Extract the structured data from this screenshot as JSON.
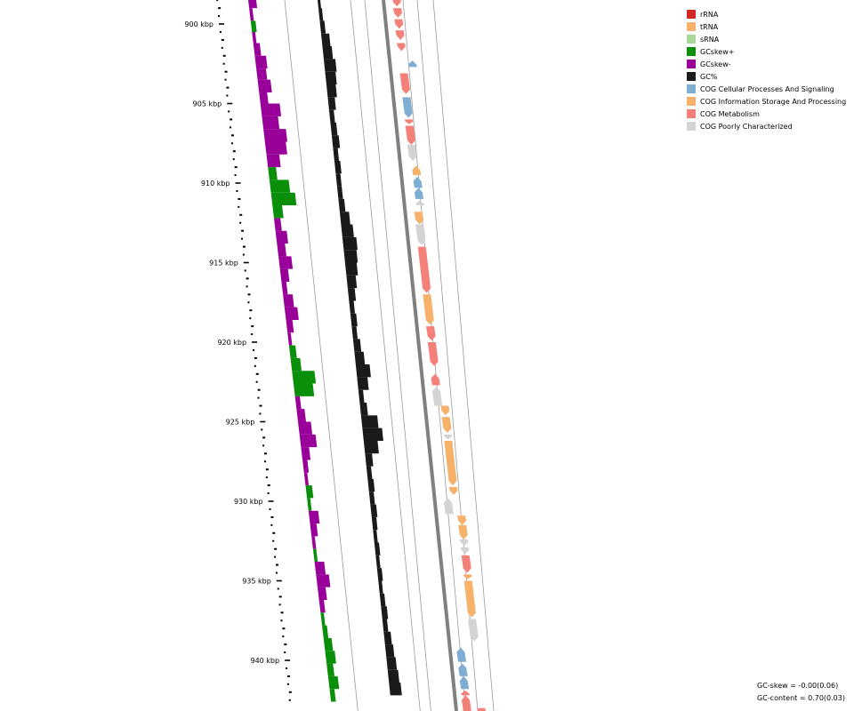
{
  "chart_data": {
    "type": "circular-genome-map-zoomed",
    "range_kbp": [
      898,
      942
    ],
    "tick_labels": [
      "900 kbp",
      "905 kbp",
      "910 kbp",
      "915 kbp",
      "920 kbp",
      "925 kbp",
      "930 kbp",
      "935 kbp",
      "940 kbp"
    ],
    "tracks": [
      "GC skew",
      "GC content",
      "COG features (reverse strand)",
      "backbone",
      "COG features (forward strand)"
    ],
    "gc_skew_profile_kbp": [
      [
        898.2,
        -0.05
      ],
      [
        899.0,
        -0.02
      ],
      [
        899.8,
        0.03
      ],
      [
        900.5,
        -0.02
      ],
      [
        901.2,
        -0.04
      ],
      [
        902.0,
        -0.07
      ],
      [
        902.8,
        -0.06
      ],
      [
        903.5,
        -0.08
      ],
      [
        904.3,
        -0.05
      ],
      [
        905.0,
        -0.12
      ],
      [
        905.8,
        -0.1
      ],
      [
        906.6,
        -0.14
      ],
      [
        907.4,
        -0.13
      ],
      [
        908.2,
        -0.08
      ],
      [
        909.0,
        0.05
      ],
      [
        909.8,
        0.12
      ],
      [
        910.6,
        0.15
      ],
      [
        911.4,
        0.06
      ],
      [
        912.2,
        -0.04
      ],
      [
        913.0,
        -0.07
      ],
      [
        913.8,
        -0.05
      ],
      [
        914.6,
        -0.08
      ],
      [
        915.4,
        -0.05
      ],
      [
        916.2,
        -0.03
      ],
      [
        917.0,
        -0.06
      ],
      [
        917.8,
        -0.08
      ],
      [
        918.6,
        -0.04
      ],
      [
        919.4,
        -0.02
      ],
      [
        920.2,
        0.04
      ],
      [
        921.0,
        0.06
      ],
      [
        921.8,
        0.14
      ],
      [
        922.6,
        0.12
      ],
      [
        923.4,
        -0.03
      ],
      [
        924.2,
        -0.05
      ],
      [
        925.0,
        -0.08
      ],
      [
        925.8,
        -0.1
      ],
      [
        926.6,
        -0.05
      ],
      [
        927.4,
        -0.03
      ],
      [
        928.2,
        -0.02
      ],
      [
        929.0,
        0.04
      ],
      [
        929.8,
        0.02
      ],
      [
        930.6,
        -0.06
      ],
      [
        931.4,
        -0.04
      ],
      [
        932.2,
        -0.02
      ],
      [
        933.0,
        0.02
      ],
      [
        933.8,
        -0.06
      ],
      [
        934.6,
        -0.08
      ],
      [
        935.4,
        -0.05
      ],
      [
        936.2,
        -0.03
      ],
      [
        937.0,
        0.02
      ],
      [
        937.8,
        0.03
      ],
      [
        938.6,
        0.05
      ],
      [
        939.4,
        0.06
      ],
      [
        940.2,
        0.04
      ],
      [
        941.0,
        0.06
      ],
      [
        941.8,
        0.03
      ]
    ],
    "gc_content_profile_kbp": [
      [
        898.2,
        0.01
      ],
      [
        899.0,
        0.015
      ],
      [
        899.8,
        0.02
      ],
      [
        900.6,
        0.035
      ],
      [
        901.4,
        0.04
      ],
      [
        902.2,
        0.05
      ],
      [
        903.0,
        0.045
      ],
      [
        903.8,
        0.04
      ],
      [
        904.6,
        0.03
      ],
      [
        905.4,
        0.02
      ],
      [
        906.2,
        0.025
      ],
      [
        907.0,
        0.03
      ],
      [
        907.8,
        0.02
      ],
      [
        908.6,
        0.025
      ],
      [
        909.4,
        0.02
      ],
      [
        910.2,
        0.02
      ],
      [
        911.0,
        0.025
      ],
      [
        911.8,
        0.04
      ],
      [
        912.6,
        0.05
      ],
      [
        913.4,
        0.06
      ],
      [
        914.2,
        0.055
      ],
      [
        915.0,
        0.05
      ],
      [
        915.8,
        0.04
      ],
      [
        916.6,
        0.03
      ],
      [
        917.4,
        0.02
      ],
      [
        918.2,
        0.025
      ],
      [
        919.0,
        0.02
      ],
      [
        919.8,
        0.03
      ],
      [
        920.6,
        0.04
      ],
      [
        921.4,
        0.06
      ],
      [
        922.2,
        0.045
      ],
      [
        923.0,
        0.02
      ],
      [
        923.8,
        0.03
      ],
      [
        924.6,
        0.07
      ],
      [
        925.4,
        0.085
      ],
      [
        926.2,
        0.06
      ],
      [
        927.0,
        0.03
      ],
      [
        927.8,
        0.02
      ],
      [
        928.6,
        0.025
      ],
      [
        929.4,
        0.02
      ],
      [
        930.2,
        0.025
      ],
      [
        931.0,
        0.02
      ],
      [
        931.8,
        0.015
      ],
      [
        932.6,
        0.02
      ],
      [
        933.4,
        0.015
      ],
      [
        934.2,
        0.02
      ],
      [
        935.0,
        0.015
      ],
      [
        935.8,
        0.02
      ],
      [
        936.6,
        0.025
      ],
      [
        937.4,
        0.02
      ],
      [
        938.2,
        0.03
      ],
      [
        939.0,
        0.035
      ],
      [
        939.8,
        0.04
      ],
      [
        940.6,
        0.045
      ],
      [
        941.4,
        0.05
      ]
    ],
    "features": [
      {
        "start": 898.0,
        "end": 898.9,
        "strand": "-",
        "category": "COG Metabolism"
      },
      {
        "start": 899.0,
        "end": 899.6,
        "strand": "-",
        "category": "COG Metabolism"
      },
      {
        "start": 899.7,
        "end": 900.3,
        "strand": "-",
        "category": "COG Metabolism"
      },
      {
        "start": 900.4,
        "end": 901.0,
        "strand": "-",
        "category": "COG Metabolism"
      },
      {
        "start": 901.2,
        "end": 901.7,
        "strand": "-",
        "category": "COG Metabolism"
      },
      {
        "start": 902.3,
        "end": 902.7,
        "strand": "+",
        "category": "COG Cellular Processes And Signaling",
        "offset": 16
      },
      {
        "start": 903.1,
        "end": 904.4,
        "strand": "-",
        "category": "COG Metabolism"
      },
      {
        "start": 904.6,
        "end": 905.9,
        "strand": "-",
        "category": "COG Cellular Processes And Signaling"
      },
      {
        "start": 906.0,
        "end": 906.3,
        "strand": "-",
        "category": "COG Metabolism"
      },
      {
        "start": 906.4,
        "end": 907.6,
        "strand": "-",
        "category": "COG Metabolism"
      },
      {
        "start": 907.6,
        "end": 908.6,
        "strand": "-",
        "category": "COG Poorly Characterized"
      },
      {
        "start": 908.9,
        "end": 909.5,
        "strand": "+",
        "category": "COG Information Storage And Processing",
        "offset": 8
      },
      {
        "start": 909.6,
        "end": 910.3,
        "strand": "+",
        "category": "COG Cellular Processes And Signaling",
        "offset": 8
      },
      {
        "start": 910.3,
        "end": 911.0,
        "strand": "+",
        "category": "COG Cellular Processes And Signaling",
        "offset": 8
      },
      {
        "start": 911.1,
        "end": 911.4,
        "strand": "+",
        "category": "COG Poorly Characterized",
        "offset": 8
      },
      {
        "start": 911.8,
        "end": 912.6,
        "strand": "-",
        "category": "COG Information Storage And Processing"
      },
      {
        "start": 912.6,
        "end": 913.9,
        "strand": "-",
        "category": "COG Poorly Characterized"
      },
      {
        "start": 914.0,
        "end": 916.9,
        "strand": "-",
        "category": "COG Metabolism"
      },
      {
        "start": 917.0,
        "end": 918.9,
        "strand": "-",
        "category": "COG Information Storage And Processing"
      },
      {
        "start": 919.0,
        "end": 919.9,
        "strand": "-",
        "category": "COG Metabolism"
      },
      {
        "start": 920.0,
        "end": 921.5,
        "strand": "-",
        "category": "COG Metabolism"
      },
      {
        "start": 922.0,
        "end": 922.7,
        "strand": "+",
        "category": "COG Metabolism"
      },
      {
        "start": 922.8,
        "end": 924.0,
        "strand": "+",
        "category": "COG Poorly Characterized"
      },
      {
        "start": 924.0,
        "end": 924.6,
        "strand": "-",
        "category": "COG Information Storage And Processing",
        "offset": 12
      },
      {
        "start": 924.7,
        "end": 925.7,
        "strand": "-",
        "category": "COG Information Storage And Processing",
        "offset": 12
      },
      {
        "start": 925.8,
        "end": 926.1,
        "strand": "-",
        "category": "COG Poorly Characterized",
        "offset": 12
      },
      {
        "start": 926.2,
        "end": 929.0,
        "strand": "-",
        "category": "COG Information Storage And Processing",
        "offset": 12
      },
      {
        "start": 929.1,
        "end": 929.6,
        "strand": "-",
        "category": "COG Information Storage And Processing",
        "offset": 12
      },
      {
        "start": 929.8,
        "end": 930.8,
        "strand": "+",
        "category": "COG Poorly Characterized"
      },
      {
        "start": 930.9,
        "end": 931.5,
        "strand": "-",
        "category": "COG Information Storage And Processing",
        "offset": 18
      },
      {
        "start": 931.5,
        "end": 932.4,
        "strand": "-",
        "category": "COG Information Storage And Processing",
        "offset": 18
      },
      {
        "start": 932.4,
        "end": 932.8,
        "strand": "-",
        "category": "COG Poorly Characterized",
        "offset": 18
      },
      {
        "start": 932.9,
        "end": 933.3,
        "strand": "-",
        "category": "COG Poorly Characterized",
        "offset": 18
      },
      {
        "start": 933.4,
        "end": 934.5,
        "strand": "-",
        "category": "COG Metabolism",
        "offset": 18
      },
      {
        "start": 934.6,
        "end": 934.9,
        "strand": "-",
        "category": "COG Information Storage And Processing",
        "offset": 18
      },
      {
        "start": 935.0,
        "end": 937.3,
        "strand": "-",
        "category": "COG Information Storage And Processing",
        "offset": 18
      },
      {
        "start": 937.4,
        "end": 938.8,
        "strand": "-",
        "category": "COG Poorly Characterized",
        "offset": 18
      },
      {
        "start": 939.2,
        "end": 940.1,
        "strand": "+",
        "category": "COG Cellular Processes And Signaling",
        "offset": 2
      },
      {
        "start": 940.2,
        "end": 941.0,
        "strand": "+",
        "category": "COG Cellular Processes And Signaling",
        "offset": 2
      },
      {
        "start": 941.0,
        "end": 941.8,
        "strand": "+",
        "category": "COG Cellular Processes And Signaling",
        "offset": 2
      },
      {
        "start": 941.9,
        "end": 942.2,
        "strand": "+",
        "category": "COG Metabolism",
        "offset": 2
      },
      {
        "start": 942.2,
        "end": 943.2,
        "strand": "+",
        "category": "COG Metabolism",
        "offset": 2
      },
      {
        "start": 943.0,
        "end": 944.0,
        "strand": "-",
        "category": "COG Metabolism",
        "offset": 18
      }
    ]
  },
  "legend": [
    {
      "label": "rRNA",
      "color": "#d62728"
    },
    {
      "label": "tRNA",
      "color": "#f6b26b"
    },
    {
      "label": "sRNA",
      "color": "#a8d99a"
    },
    {
      "label": "GCskew+",
      "color": "#0a8f0a"
    },
    {
      "label": "GCskew-",
      "color": "#990099"
    },
    {
      "label": "GC%",
      "color": "#1a1a1a"
    },
    {
      "label": "COG Cellular Processes And Signaling",
      "color": "#80aed3"
    },
    {
      "label": "COG Information Storage And Processing",
      "color": "#f6b26b"
    },
    {
      "label": "COG Metabolism",
      "color": "#f4807a"
    },
    {
      "label": "COG Poorly Characterized",
      "color": "#d3d3d3"
    }
  ],
  "stats": {
    "gc_skew": "GC-skew = -0.00(0.06)",
    "gc_content": "GC-content = 0.70(0.03)"
  }
}
